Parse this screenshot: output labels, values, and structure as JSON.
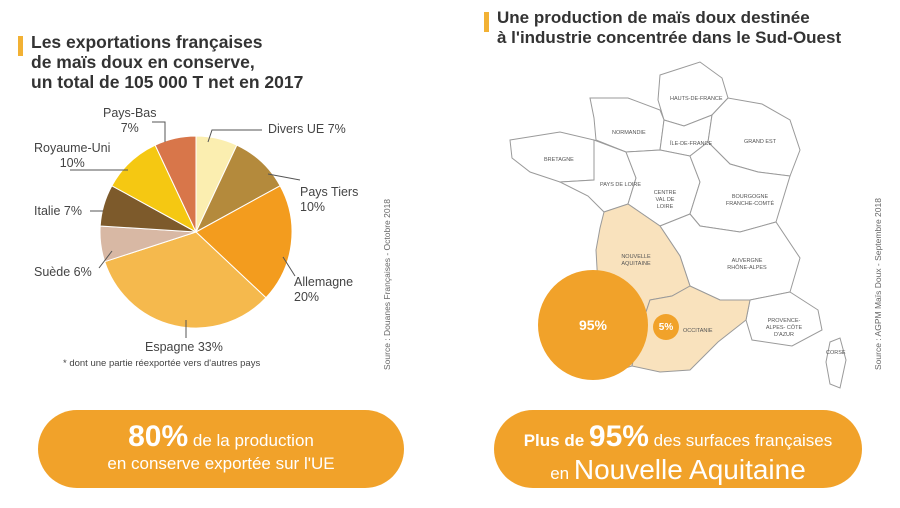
{
  "left": {
    "title_lines": [
      "Les exportations françaises",
      "de maïs doux en conserve,",
      "un total de 105 000 T net en 2017"
    ],
    "footnote": "* dont une partie réexportée vers d'autres pays",
    "source": "Source : Douanes Françaises - Octobre 2018",
    "pill": {
      "big": "80%",
      "text1": " de la production",
      "text2": "en conserve exportée sur l'UE"
    }
  },
  "right": {
    "title_lines": [
      "Une production de maïs doux destinée",
      "à l'industrie concentrée dans le Sud-Ouest"
    ],
    "source": "Source : AGPM Maïs Doux - Septembre 2018",
    "badge_na": "95%",
    "badge_occ": "5%",
    "pill": {
      "pre": "Plus de ",
      "big": "95%",
      "text1": " des surfaces françaises",
      "pre2": "en ",
      "text2": "Nouvelle Aquitaine"
    },
    "regions": {
      "hauts": "HAUTS-DE-FRANCE",
      "normandie": "NORMANDIE",
      "idf": "ÎLE-DE-FRANCE",
      "grandest": "GRAND EST",
      "bretagne": "BRETAGNE",
      "paysloire": "PAYS DE LOIRE",
      "centre": "CENTRE Val de Loire",
      "bourgogne": "BOURGOGNE FRANCHE-COMTÉ",
      "na": "NOUVELLE AQUITAINE",
      "aura": "AUVERGNE RHÔNE-ALPES",
      "occitanie": "OCCITANIE",
      "paca": "PROVENCE-ALPES- CÔTE D'AZUR",
      "corse": "CORSE"
    }
  },
  "chart_data": {
    "type": "pie",
    "title": "Les exportations françaises de maïs doux en conserve, un total de 105 000 T net en 2017",
    "slices": [
      {
        "label": "Divers UE",
        "value": 7,
        "color": "#fbeeb0"
      },
      {
        "label": "Pays Tiers",
        "value": 10,
        "color": "#b48a3c"
      },
      {
        "label": "Allemagne",
        "value": 20,
        "color": "#f39c1e"
      },
      {
        "label": "Espagne",
        "value": 33,
        "color": "#f5b94d"
      },
      {
        "label": "Suède",
        "value": 6,
        "color": "#d8b8a4"
      },
      {
        "label": "Italie",
        "value": 7,
        "color": "#7d5a2b"
      },
      {
        "label": "Royaume-Uni",
        "value": 10,
        "color": "#f5c812"
      },
      {
        "label": "Pays-Bas",
        "value": 7,
        "color": "#d8764a"
      }
    ],
    "slice_labels": {
      "divers": "Divers UE 7%",
      "paystiers_1": "Pays Tiers",
      "paystiers_2": "10%",
      "allemagne_1": "Allemagne",
      "allemagne_2": "20%",
      "espagne": "Espagne 33%",
      "suede": "Suède 6%",
      "italie": "Italie 7%",
      "ru_1": "Royaume-Uni",
      "ru_2": "10%",
      "pb_1": "Pays-Bas",
      "pb_2": "7%"
    }
  }
}
